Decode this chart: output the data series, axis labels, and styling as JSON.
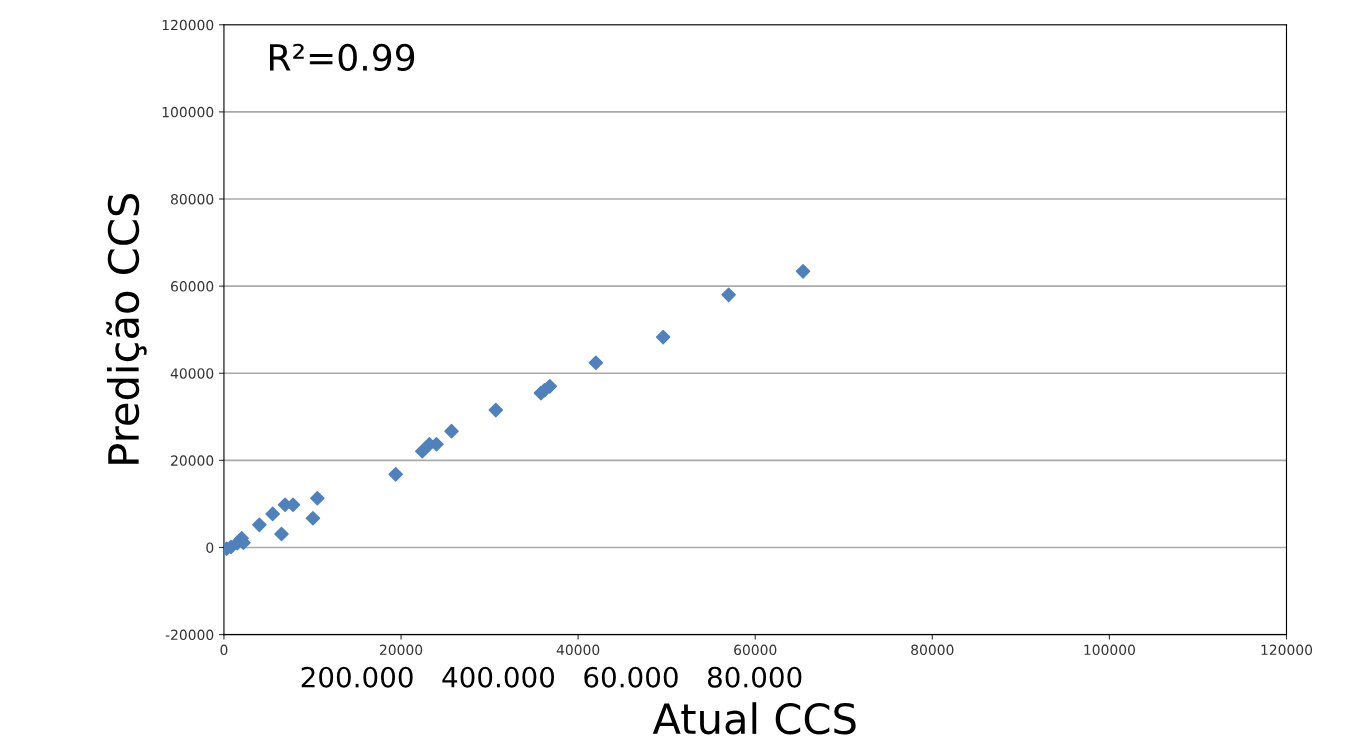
{
  "chart_data": {
    "type": "scatter",
    "xlabel": "Atual CCS",
    "ylabel": "Predição CCS",
    "annotations": [
      "R²=0.99",
      "200.000   400.000   60.000   80.000"
    ],
    "x": [
      300,
      800,
      1500,
      2000,
      2200,
      4000,
      5500,
      6500,
      6900,
      7800,
      10050,
      10550,
      19400,
      22400,
      23200,
      24000,
      25700,
      30700,
      35800,
      36200,
      36800,
      42000,
      49600,
      57000,
      65400
    ],
    "series": [
      {
        "color": "#4f81bd",
        "values": [
          -300,
          100,
          1000,
          2100,
          1100,
          5200,
          7700,
          3100,
          9800,
          9800,
          6700,
          11300,
          16800,
          22100,
          23700,
          23700,
          26700,
          31550,
          35450,
          36100,
          37000,
          42400,
          48300,
          58000,
          63400
        ]
      }
    ],
    "xlim": [
      0,
      120000
    ],
    "xticks": [
      0,
      20000,
      40000,
      60000,
      80000,
      100000,
      120000
    ],
    "ylim": [
      -20000,
      120000
    ],
    "yticks": [
      -20000,
      0,
      20000,
      40000,
      60000,
      80000,
      100000,
      120000
    ],
    "grid": "y",
    "marker": "diamond"
  }
}
